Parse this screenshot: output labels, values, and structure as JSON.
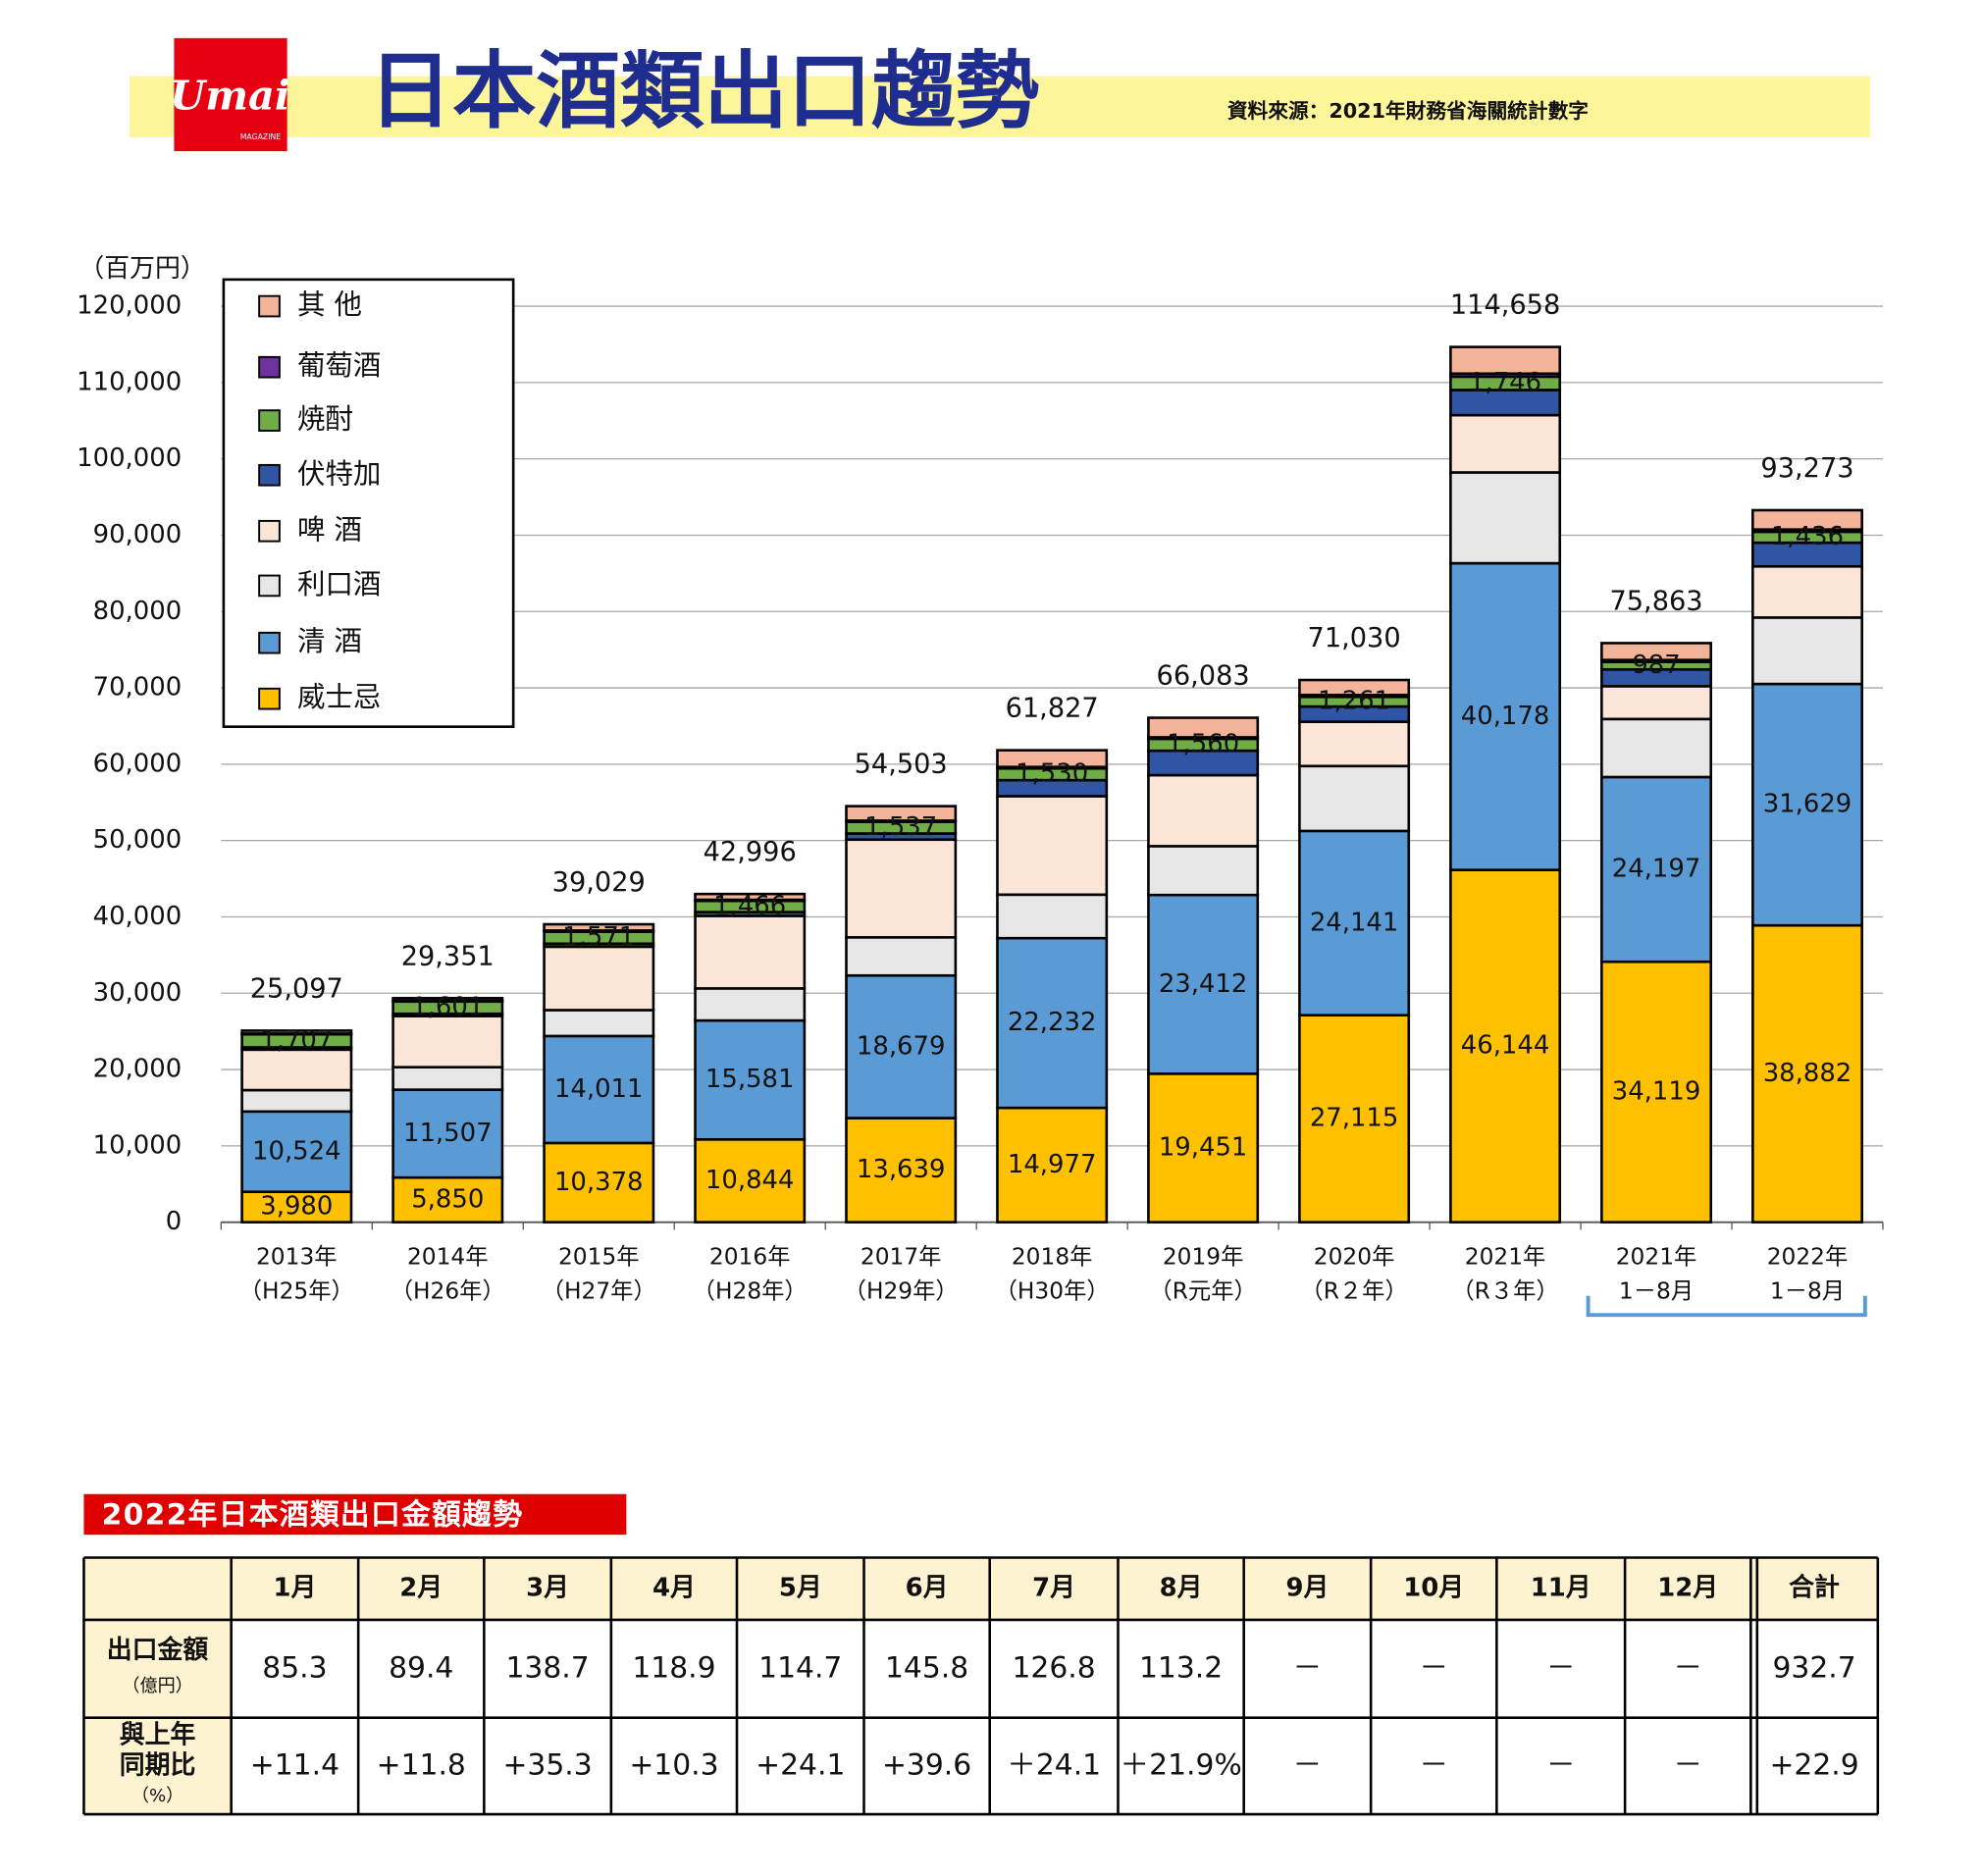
{
  "header": {
    "logo": "Umai",
    "logo_sub": "MAGAZINE",
    "title": "日本酒類出口趨勢",
    "source": "資料來源：2021年財務省海關統計數字"
  },
  "chart_data": {
    "type": "bar",
    "stacked": true,
    "y_axis_label": "（百万円）",
    "categories": [
      [
        "2013年",
        "（H25年）"
      ],
      [
        "2014年",
        "（H26年）"
      ],
      [
        "2015年",
        "（H27年）"
      ],
      [
        "2016年",
        "（H28年）"
      ],
      [
        "2017年",
        "（H29年）"
      ],
      [
        "2018年",
        "（H30年）"
      ],
      [
        "2019年",
        "（R元年）"
      ],
      [
        "2020年",
        "（R２年）"
      ],
      [
        "2021年",
        "（R３年）"
      ],
      [
        "2021年",
        "1－8月"
      ],
      [
        "2022年",
        "1－8月"
      ]
    ],
    "series": [
      {
        "name": "威士忌",
        "color": "#ffc000",
        "values": [
          3980,
          5850,
          10378,
          10844,
          13639,
          14977,
          19451,
          27115,
          46144,
          34119,
          38882
        ],
        "value_labels": [
          "3,980",
          "5,850",
          "10,378",
          "10,844",
          "13,639",
          "14,977",
          "19,451",
          "27,115",
          "46,144",
          "34,119",
          "38,882"
        ]
      },
      {
        "name": "清 酒",
        "color": "#5b9bd5",
        "values": [
          10524,
          11507,
          14011,
          15581,
          18679,
          22232,
          23412,
          24141,
          40178,
          24197,
          31629
        ],
        "value_labels": [
          "10,524",
          "11,507",
          "14,011",
          "15,581",
          "18,679",
          "22,232",
          "23,412",
          "24,141",
          "40,178",
          "24,197",
          "31,629"
        ]
      },
      {
        "name": "利口酒",
        "color": "#e7e6e6",
        "values": [
          2800,
          2950,
          3400,
          4200,
          5000,
          5700,
          6400,
          8500,
          11900,
          7600,
          8700
        ]
      },
      {
        "name": "啤 酒",
        "color": "#fbe5d6",
        "values": [
          5300,
          6700,
          8300,
          9500,
          12800,
          12900,
          9300,
          5800,
          7500,
          4300,
          6700
        ]
      },
      {
        "name": "伏特加",
        "color": "#2f55a4",
        "values": [
          300,
          300,
          400,
          500,
          800,
          2100,
          3200,
          2000,
          3300,
          2200,
          3100
        ]
      },
      {
        "name": "焼酎",
        "color": "#70ad47",
        "values": [
          1707,
          1601,
          1571,
          1466,
          1537,
          1530,
          1560,
          1261,
          1746,
          987,
          1436
        ],
        "value_labels": [
          "1,707",
          "1,601",
          "1,571",
          "1,466",
          "1,537",
          "1,530",
          "1,560",
          "1,261",
          "1,746",
          "987",
          "1,436"
        ]
      },
      {
        "name": "葡萄酒",
        "color": "#7030a0",
        "values": [
          100,
          100,
          150,
          150,
          150,
          200,
          200,
          250,
          400,
          250,
          300
        ]
      },
      {
        "name": "其 他",
        "color": "#f4b49a",
        "values": [
          386,
          343,
          819,
          755,
          1898,
          2188,
          2560,
          1963,
          3490,
          2210,
          2526
        ]
      }
    ],
    "totals": {
      "values": [
        25097,
        29351,
        39029,
        42996,
        54503,
        61827,
        66083,
        71030,
        114658,
        75863,
        93273
      ],
      "value_labels": [
        "25,097",
        "29,351",
        "39,029",
        "42,996",
        "54,503",
        "61,827",
        "66,083",
        "71,030",
        "114,658",
        "75,863",
        "93,273"
      ]
    },
    "ylim": [
      0,
      120000
    ],
    "yticks": [
      0,
      {
        "value": 10000,
        "label": "10,000"
      },
      {
        "value": 20000,
        "label": "20,000"
      },
      {
        "value": 30000,
        "label": "30,000"
      },
      {
        "value": 40000,
        "label": "40,000"
      },
      {
        "value": 50000,
        "label": "50,000"
      },
      {
        "value": 60000,
        "label": "60,000"
      },
      {
        "value": 70000,
        "label": "70,000"
      },
      {
        "value": 80000,
        "label": "80,000"
      },
      {
        "value": 90000,
        "label": "90,000"
      },
      {
        "value": 100000,
        "label": "100,000"
      },
      {
        "value": 110000,
        "label": "110,000"
      },
      {
        "value": 120000,
        "label": "120,000"
      }
    ],
    "grid": true,
    "legend": "upper left"
  },
  "table": {
    "title": "2022年日本酒類出口金額趨勢",
    "header": [
      "1月",
      "2月",
      "3月",
      "4月",
      "5月",
      "6月",
      "7月",
      "8月",
      "9月",
      "10月",
      "11月",
      "12月",
      "合計"
    ],
    "rows": [
      {
        "label": [
          "出口金額",
          "（億円）"
        ],
        "cells": [
          "85.3",
          "89.4",
          "138.7",
          "118.9",
          "114.7",
          "145.8",
          "126.8",
          "113.2",
          "－",
          "－",
          "－",
          "－",
          "932.7"
        ]
      },
      {
        "label": [
          "與上年",
          "同期比",
          "（%）"
        ],
        "cells": [
          "+11.4",
          "+11.8",
          "+35.3",
          "+10.3",
          "+24.1",
          "+39.6",
          "＋24.1",
          "＋21.9%",
          "－",
          "－",
          "－",
          "－",
          "+22.9"
        ]
      }
    ]
  }
}
